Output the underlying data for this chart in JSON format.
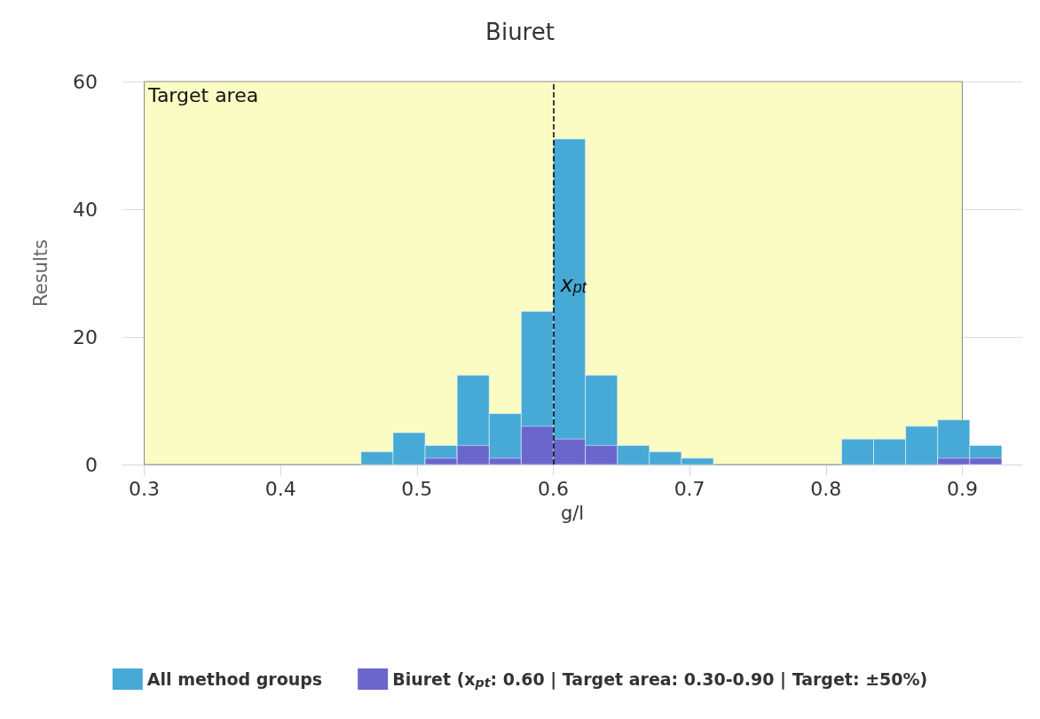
{
  "chart_data": {
    "type": "histogram",
    "title": "Biuret",
    "xlabel": "g/l",
    "ylabel": "Results",
    "bins": [
      0.459,
      0.4825,
      0.506,
      0.5295,
      0.553,
      0.5765,
      0.6,
      0.6235,
      0.647,
      0.6705,
      0.694,
      0.7175,
      0.741,
      0.7645,
      0.788,
      0.8115,
      0.835,
      0.8585,
      0.882,
      0.9055,
      0.929
    ],
    "series": [
      {
        "name": "All method groups",
        "color": "#46a9d6",
        "values": [
          2,
          5,
          3,
          14,
          8,
          24,
          51,
          14,
          3,
          2,
          1,
          0,
          0,
          0,
          0,
          4,
          4,
          6,
          7,
          3
        ]
      },
      {
        "name": "Biuret (x$_{pt}$: 0.60 | Target area: 0.30-0.90 | Target: ±50%)",
        "color": "#6b66cc",
        "values": [
          0,
          0,
          1,
          3,
          1,
          6,
          4,
          3,
          0,
          0,
          0,
          0,
          0,
          0,
          0,
          0,
          0,
          0,
          1,
          1
        ]
      }
    ],
    "xlim": [
      0.284,
      0.944
    ],
    "xticks": [
      0.3,
      0.4,
      0.5,
      0.6,
      0.7,
      0.8,
      0.9
    ],
    "ylim": [
      0,
      60
    ],
    "yticks": [
      0,
      20,
      40,
      60
    ],
    "bands": [
      {
        "axis": "x",
        "from": 0.3,
        "to": 0.9,
        "label": "Target area",
        "color": "#fafcc4"
      }
    ],
    "ref_lines": [
      {
        "axis": "x",
        "value": 0.6,
        "label": "x$_{pt}$",
        "line_style": "dashed",
        "color": "#000000"
      }
    ],
    "grid": "y",
    "legend": "bottom"
  }
}
